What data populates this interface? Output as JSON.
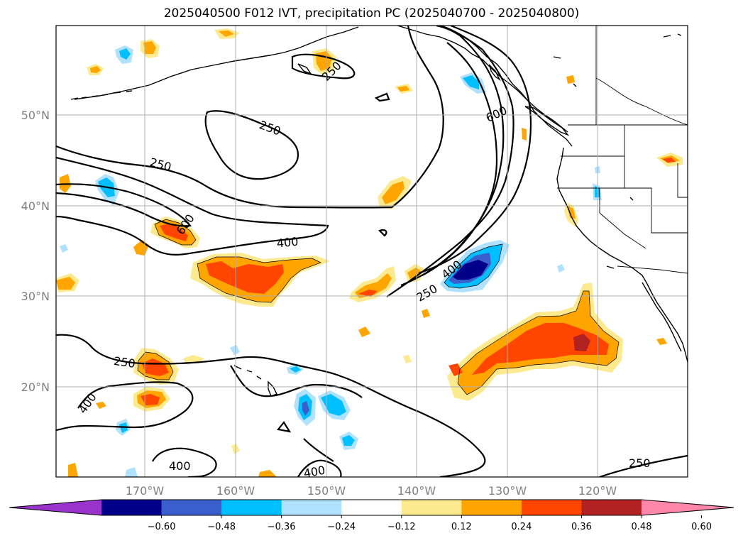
{
  "title": "2025040500 F012 IVT, precipitation PC (2025040700 - 2025040800)",
  "lat_labels": [
    "50°N",
    "40°N",
    "30°N",
    "20°N"
  ],
  "lon_labels": [
    "170°W",
    "160°W",
    "150°W",
    "140°W",
    "130°W",
    "120°W"
  ],
  "contour_labels": [
    "250",
    "250",
    "600",
    "600",
    "400",
    "400",
    "250",
    "250",
    "400",
    "400",
    "400",
    "250"
  ],
  "colorbar": {
    "colors": [
      "#9933cc",
      "#00008b",
      "#3a5fcd",
      "#00bfff",
      "#b0e2ff",
      "#ffffff",
      "#fdea8e",
      "#ffa500",
      "#ff4500",
      "#b22222",
      "#ff88aa"
    ],
    "ticks": [
      "−0.60",
      "−0.48",
      "−0.36",
      "−0.24",
      "−0.12",
      "0.12",
      "0.24",
      "0.36",
      "0.48",
      "0.60"
    ]
  },
  "colors": {
    "coastline": "#000000",
    "grid": "#b0b0b0",
    "label": "#808080"
  }
}
